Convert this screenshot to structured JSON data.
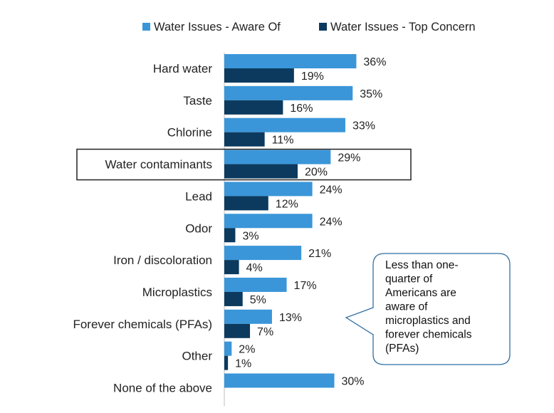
{
  "chart_data": {
    "type": "bar",
    "orientation": "horizontal",
    "categories": [
      "Hard water",
      "Taste",
      "Chlorine",
      "Water contaminants",
      "Lead",
      "Odor",
      "Iron / discoloration",
      "Microplastics",
      "Forever chemicals (PFAs)",
      "Other",
      "None of the above"
    ],
    "series": [
      {
        "name": "Water Issues - Aware Of",
        "color": "#3a96d8",
        "values": [
          36,
          35,
          33,
          29,
          24,
          24,
          21,
          17,
          13,
          2,
          30
        ],
        "labels": [
          "36%",
          "35%",
          "33%",
          "29%",
          "24%",
          "24%",
          "21%",
          "17%",
          "13%",
          "2%",
          "30%"
        ]
      },
      {
        "name": "Water Issues - Top Concern",
        "color": "#0c3a5e",
        "values": [
          19,
          16,
          11,
          20,
          12,
          3,
          4,
          5,
          7,
          1,
          null
        ],
        "labels": [
          "19%",
          "16%",
          "11%",
          "20%",
          "12%",
          "3%",
          "4%",
          "5%",
          "7%",
          "1%",
          null
        ]
      }
    ],
    "highlighted_category": "Water contaminants",
    "legend_position": "top",
    "title": "",
    "xlabel": "",
    "ylabel": "",
    "xlim": [
      0,
      40
    ]
  },
  "callout": {
    "lines": [
      "Less than one-",
      "quarter of",
      "Americans are",
      "aware of",
      "microplastics and",
      "forever chemicals",
      "(PFAs)"
    ]
  },
  "colors": {
    "axis": "#bfbfbf",
    "highlight_border": "#222222",
    "callout_border": "#2f6fa3"
  }
}
